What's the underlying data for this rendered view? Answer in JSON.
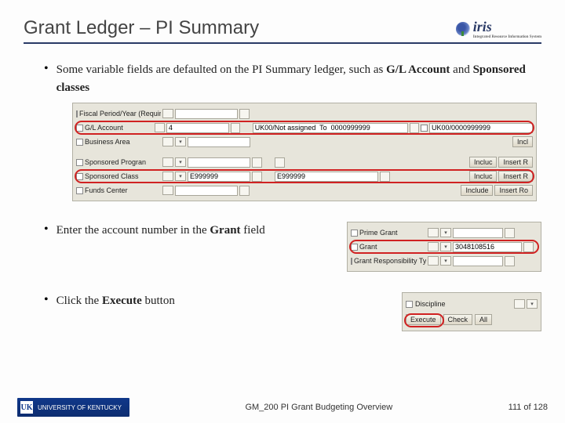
{
  "title": "Grant Ledger – PI Summary",
  "logo": {
    "text": "iris",
    "subtitle": "Integrated Resource Information System"
  },
  "bullet1": {
    "pre": "Some variable fields are defaulted on the PI Summary ledger, such as ",
    "b1": "G/L Account",
    "mid": " and ",
    "b2": "Sponsored classes"
  },
  "bullet2": {
    "pre": "Enter the account number in the ",
    "b1": "Grant",
    "post": " field"
  },
  "bullet3": {
    "pre": "Click the ",
    "b1": "Execute",
    "post": " button"
  },
  "sap_main": {
    "bg": "#e7e5db",
    "rows": [
      {
        "label": "Fiscal Period/Year (Required) (?)",
        "mini": false,
        "val1": "",
        "f4a": true,
        "right": {
          "btn": null,
          "val": null
        }
      },
      {
        "label": "G/L Account",
        "mini": false,
        "val1": "4",
        "f4a": true,
        "mid": "UK00/Not assigned  To  0000999999",
        "midw": 218,
        "right": {
          "lbl": null,
          "val": "UK00/0000999999"
        },
        "highlight": true
      },
      {
        "label": "Business Area",
        "mini": true,
        "val1": "",
        "right": {
          "btn": "Incl"
        }
      },
      {
        "sep": true
      },
      {
        "label": "Sponsored Progran",
        "mini": true,
        "val1": "",
        "f4a": true,
        "mid_f4": true,
        "right": {
          "btn": "Incluc",
          "btn2": "Insert R"
        }
      },
      {
        "label": "Sponsored Class",
        "mini": true,
        "val1": "E999999",
        "f4a": true,
        "mid": "E999999",
        "right": {
          "btn": "Incluc",
          "btn2": "Insert R"
        },
        "highlight": true
      },
      {
        "label": "Funds Center",
        "mini": false,
        "val1": "",
        "f4a": true,
        "right": {
          "btn": "Include",
          "btn2": "Insert Ro"
        }
      }
    ],
    "highlight_color": "#d02222"
  },
  "sap_grant": {
    "rows": [
      {
        "label": "Prime Grant",
        "mini": true,
        "val": "",
        "tail_f4": true
      },
      {
        "label": "Grant",
        "mini": true,
        "val": "3048108516",
        "valw": 88,
        "tail_f4": true,
        "highlight": true
      },
      {
        "label": "Grant Responsibility Type",
        "mini": true,
        "val": "",
        "tail_f4": true
      }
    ]
  },
  "sap_exec": {
    "discipline_label": "Discipline",
    "buttons": [
      "Execute",
      "Check",
      "All"
    ],
    "highlight_idx": 0
  },
  "footer": {
    "org_short": "UK",
    "org_full": "UNIVERSITY OF KENTUCKY",
    "center": "GM_200 PI Grant Budgeting Overview",
    "page": "111 of 128"
  }
}
